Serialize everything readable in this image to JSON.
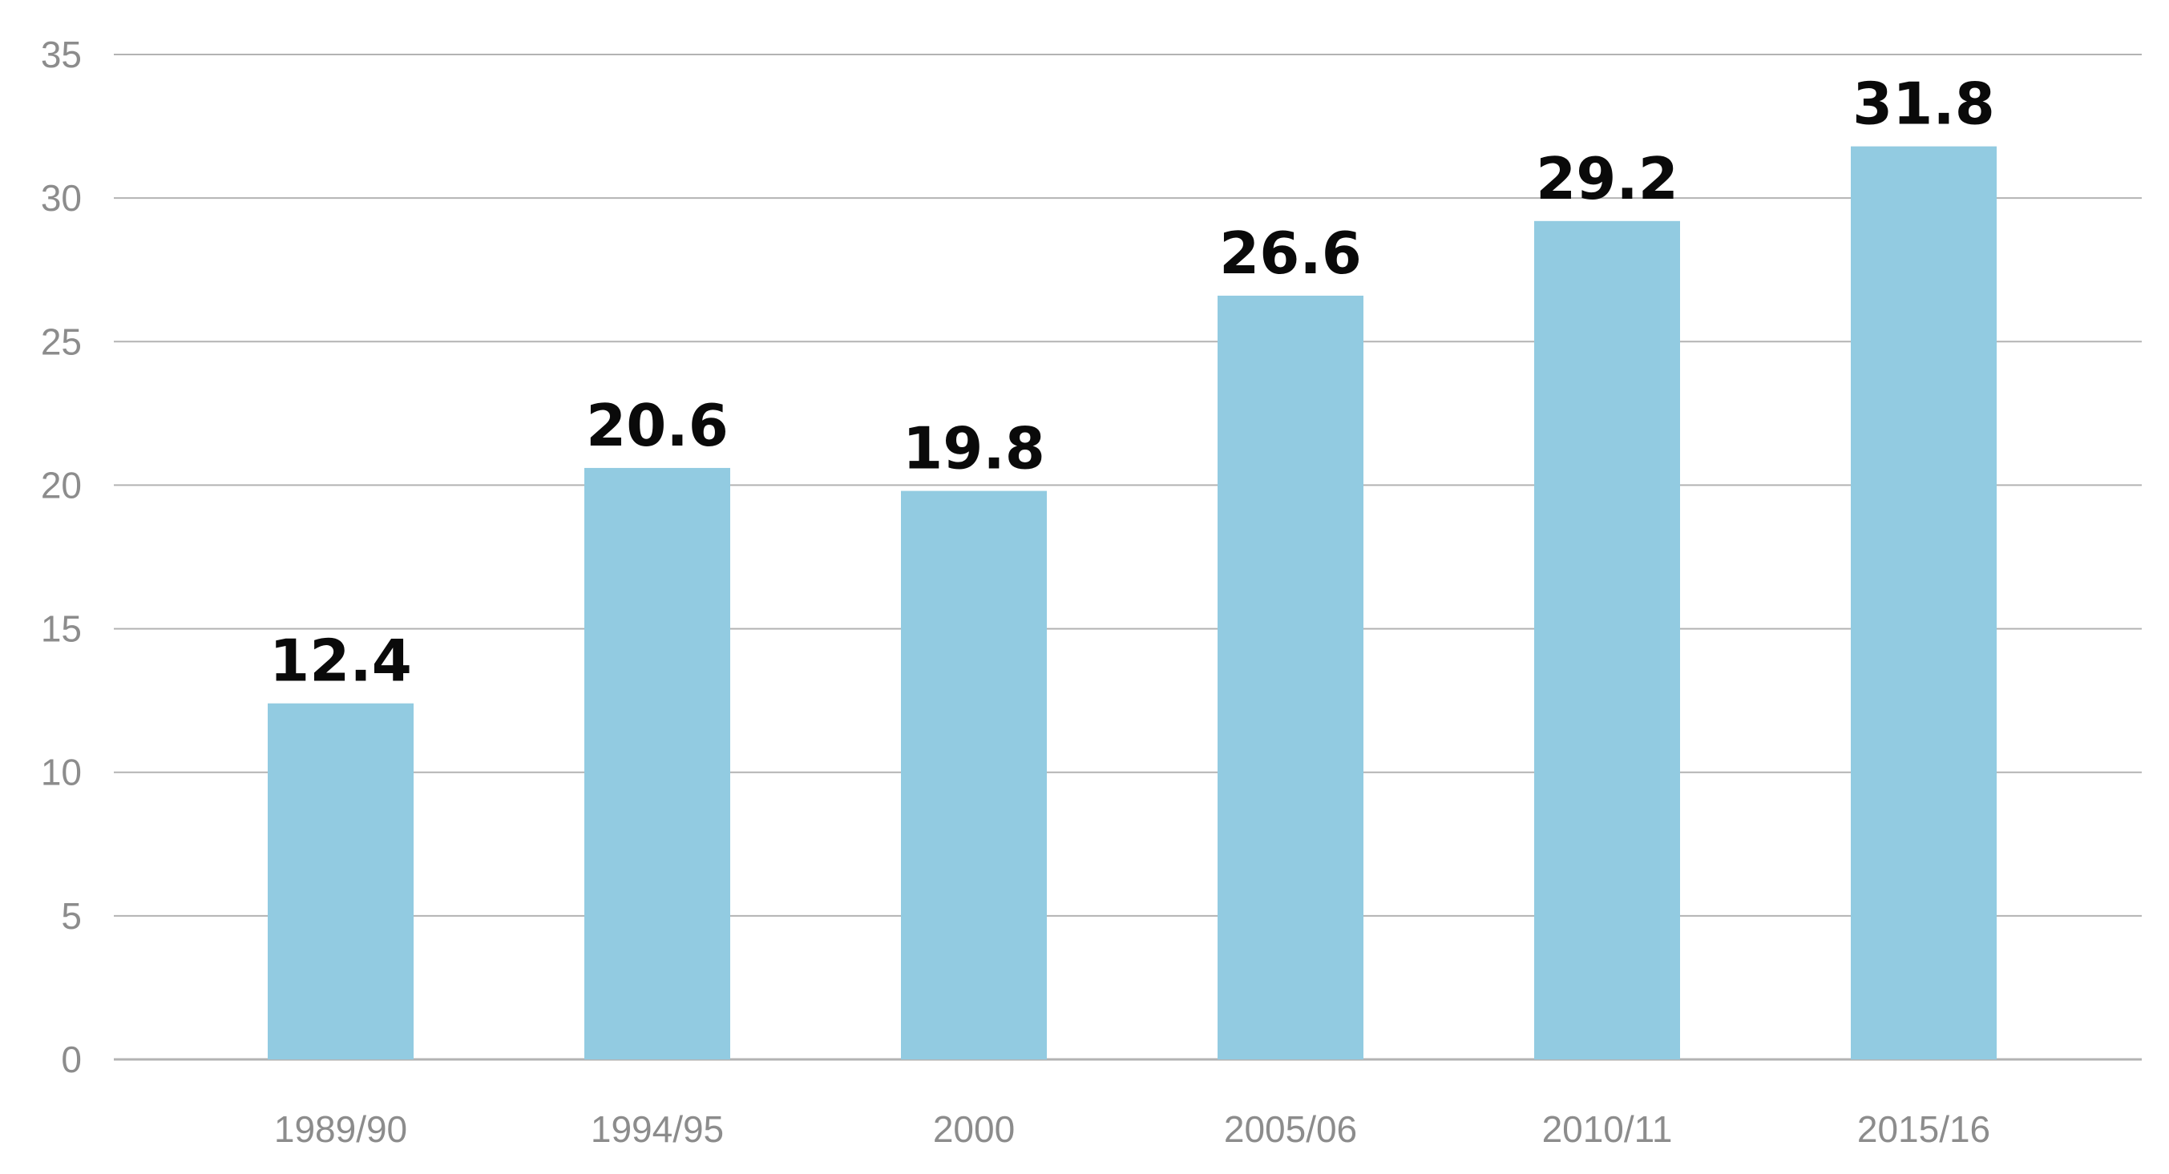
{
  "chart_data": {
    "type": "bar",
    "categories": [
      "1989/90",
      "1994/95",
      "2000",
      "2005/06",
      "2010/11",
      "2015/16"
    ],
    "values": [
      12.4,
      20.6,
      19.8,
      26.6,
      29.2,
      31.8
    ],
    "data_labels": [
      "12.4",
      "20.6",
      "19.8",
      "26.6",
      "29.2",
      "31.8"
    ],
    "title": "",
    "xlabel": "",
    "ylabel": "",
    "ylim": [
      0,
      35
    ],
    "yticks": [
      "0",
      "5",
      "10",
      "15",
      "20",
      "25",
      "30",
      "35"
    ],
    "grid": "horizontal",
    "legend": "none",
    "colors": {
      "bar": "#92cbe1",
      "grid": "#b3b3b3",
      "tick_text": "#8c8c8c",
      "data_label": "#0a0a0a"
    }
  }
}
